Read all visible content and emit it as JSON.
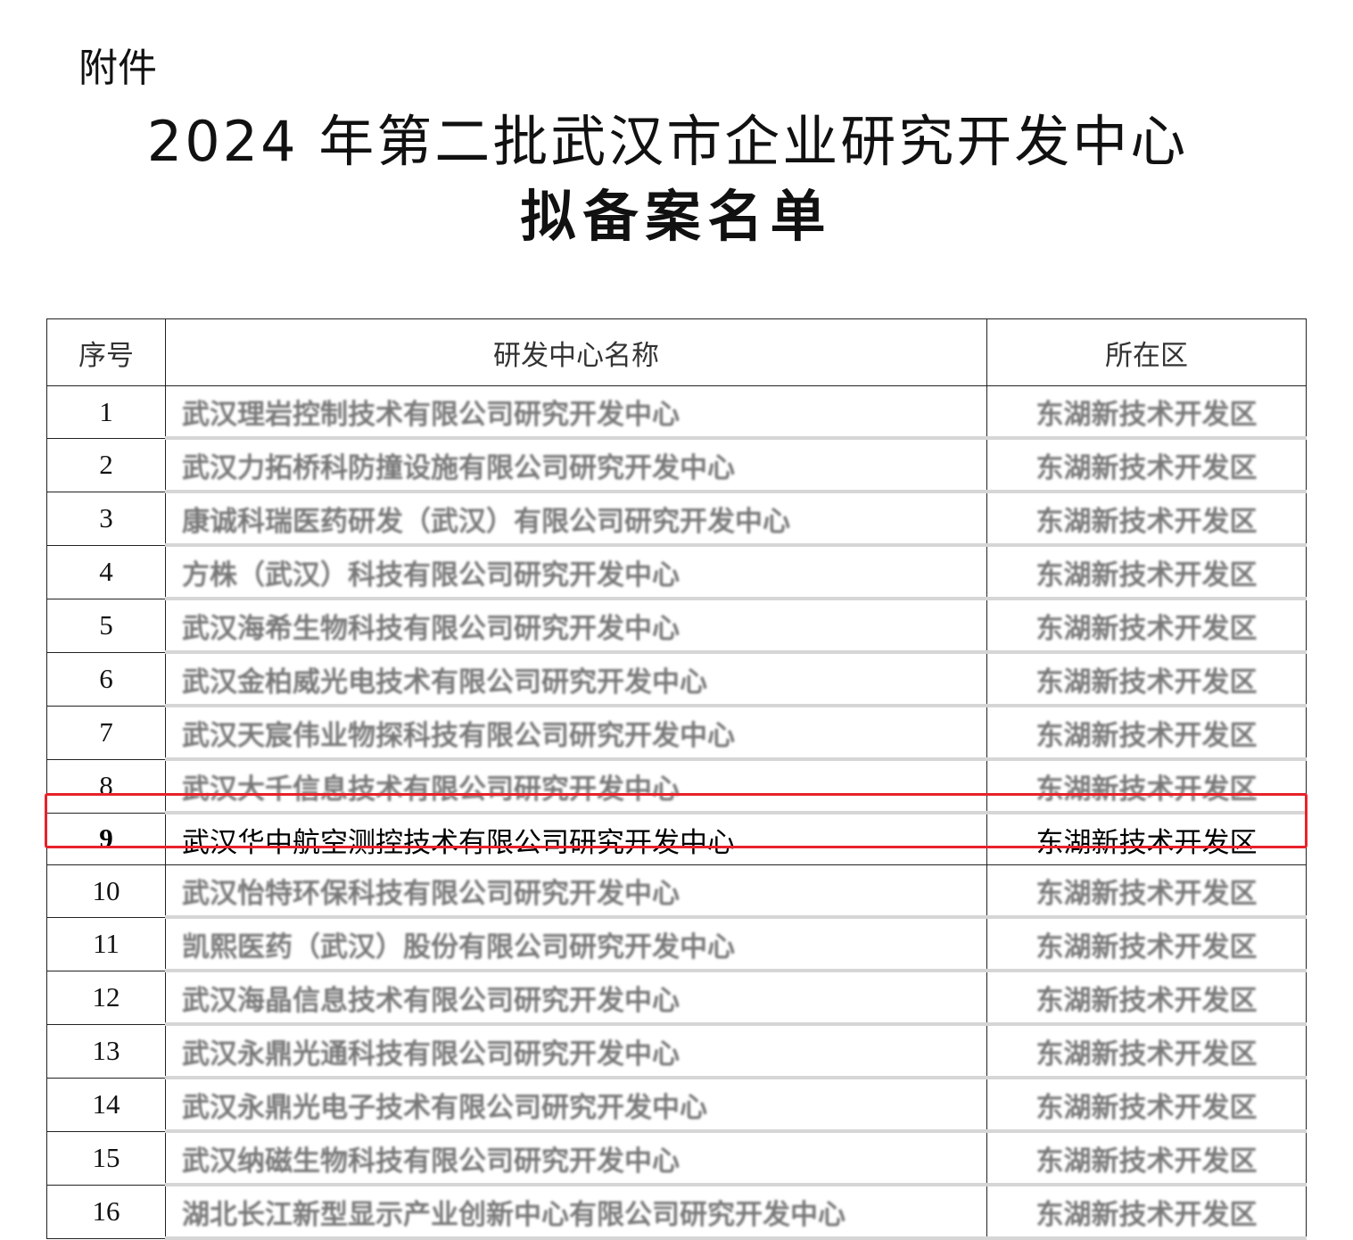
{
  "attachment_label": "附件",
  "title_line1": "2024 年第二批武汉市企业研究开发中心",
  "title_line2": "拟备案名单",
  "highlight_color": "#e8222a",
  "table": {
    "headers": [
      "序号",
      "研发中心名称",
      "所在区"
    ],
    "rows": [
      {
        "no": "1",
        "name": "武汉理岩控制技术有限公司研究开发中心",
        "district": "东湖新技术开发区"
      },
      {
        "no": "2",
        "name": "武汉力拓桥科防撞设施有限公司研究开发中心",
        "district": "东湖新技术开发区"
      },
      {
        "no": "3",
        "name": "康诚科瑞医药研发（武汉）有限公司研究开发中心",
        "district": "东湖新技术开发区"
      },
      {
        "no": "4",
        "name": "方株（武汉）科技有限公司研究开发中心",
        "district": "东湖新技术开发区"
      },
      {
        "no": "5",
        "name": "武汉海希生物科技有限公司研究开发中心",
        "district": "东湖新技术开发区"
      },
      {
        "no": "6",
        "name": "武汉金柏威光电技术有限公司研究开发中心",
        "district": "东湖新技术开发区"
      },
      {
        "no": "7",
        "name": "武汉天宸伟业物探科技有限公司研究开发中心",
        "district": "东湖新技术开发区"
      },
      {
        "no": "8",
        "name": "武汉大千信息技术有限公司研究开发中心",
        "district": "东湖新技术开发区"
      },
      {
        "no": "9",
        "name": "武汉华中航空测控技术有限公司研究开发中心",
        "district": "东湖新技术开发区",
        "highlighted": true
      },
      {
        "no": "10",
        "name": "武汉怡特环保科技有限公司研究开发中心",
        "district": "东湖新技术开发区"
      },
      {
        "no": "11",
        "name": "凯熙医药（武汉）股份有限公司研究开发中心",
        "district": "东湖新技术开发区"
      },
      {
        "no": "12",
        "name": "武汉海晶信息技术有限公司研究开发中心",
        "district": "东湖新技术开发区"
      },
      {
        "no": "13",
        "name": "武汉永鼎光通科技有限公司研究开发中心",
        "district": "东湖新技术开发区"
      },
      {
        "no": "14",
        "name": "武汉永鼎光电子技术有限公司研究开发中心",
        "district": "东湖新技术开发区"
      },
      {
        "no": "15",
        "name": "武汉纳磁生物科技有限公司研究开发中心",
        "district": "东湖新技术开发区"
      },
      {
        "no": "16",
        "name": "湖北长江新型显示产业创新中心有限公司研究开发中心",
        "district": "东湖新技术开发区"
      }
    ]
  }
}
